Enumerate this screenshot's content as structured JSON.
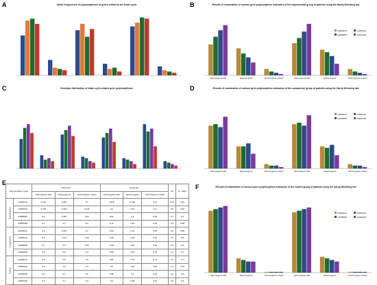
{
  "figure": {
    "labels": [
      "A",
      "B",
      "C",
      "D",
      "E",
      "F"
    ]
  },
  "colors": {
    "gold": "#b58a3e",
    "green": "#1e6b2e",
    "navy": "#2c4a8c",
    "purple": "#7a3b9c",
    "orange": "#e07b39",
    "red": "#c0392b",
    "blue": "#3a5fa8",
    "teal": "#2a9d8f"
  },
  "chart_data": [
    {
      "id": "A",
      "type": "bar",
      "title": "Allelic frequencies of polymorphisms of genes related to the folate cycle",
      "series_colors": [
        "#2c4a8c",
        "#e07b39",
        "#1e6b2e",
        "#c0392b"
      ],
      "groups": [
        {
          "name": "",
          "values": [
            62,
            85,
            88,
            80
          ]
        },
        {
          "name": "",
          "values": [
            24,
            12,
            10,
            8
          ]
        },
        {
          "name": "",
          "values": [
            70,
            80,
            60,
            72
          ]
        },
        {
          "name": "",
          "values": [
            18,
            10,
            12,
            6
          ]
        },
        {
          "name": "",
          "values": [
            76,
            82,
            90,
            88
          ]
        },
        {
          "name": "",
          "values": [
            14,
            8,
            6,
            4
          ]
        }
      ],
      "legend": [
        "",
        "",
        ""
      ]
    },
    {
      "id": "B",
      "type": "bar",
      "title": "Results of examination of various gene polymorphism indicators of the experimental group of patients using the Hardy-Weinberg law",
      "series_colors": [
        "#b58a3e",
        "#1e6b2e",
        "#2c4a8c",
        "#7a3b9c"
      ],
      "groups": [
        {
          "name": "Homozygous wild",
          "values": [
            48,
            60,
            70,
            78
          ]
        },
        {
          "name": "Heterozygous",
          "values": [
            42,
            34,
            28,
            20
          ]
        },
        {
          "name": "Homozygous mutant",
          "values": [
            10,
            6,
            4,
            2
          ]
        },
        {
          "name": "Homozygous wild",
          "values": [
            50,
            58,
            68,
            80
          ]
        },
        {
          "name": "Heterozygous",
          "values": [
            40,
            36,
            30,
            18
          ]
        },
        {
          "name": "Homozygous mutant",
          "values": [
            10,
            6,
            4,
            2
          ]
        }
      ],
      "legend": [
        "rs1801131",
        "rs1801133",
        "rs1805087",
        "rs1801394"
      ]
    },
    {
      "id": "C",
      "type": "bar",
      "title": "Genotype distribution of folate cycle-related gene polymorphisms",
      "series_colors": [
        "#2c4a8c",
        "#1e6b2e",
        "#7a3b9c",
        "#c0392b"
      ],
      "groups": [
        {
          "name": "",
          "values": [
            40,
            55,
            60,
            48
          ]
        },
        {
          "name": "",
          "values": [
            18,
            12,
            14,
            10
          ]
        },
        {
          "name": "",
          "values": [
            46,
            52,
            58,
            44
          ]
        },
        {
          "name": "",
          "values": [
            16,
            14,
            10,
            8
          ]
        },
        {
          "name": "",
          "values": [
            42,
            48,
            54,
            36
          ]
        },
        {
          "name": "",
          "values": [
            14,
            12,
            10,
            6
          ]
        },
        {
          "name": "",
          "values": [
            60,
            50,
            54,
            30
          ]
        },
        {
          "name": "",
          "values": [
            10,
            8,
            6,
            4
          ]
        }
      ],
      "legend": [
        "",
        "",
        ""
      ]
    },
    {
      "id": "D",
      "type": "bar",
      "title": "Results of examination of various gene polymorphism indicators of the comparison group of patients using the Hardy-Weinberg law",
      "series_colors": [
        "#b58a3e",
        "#1e6b2e",
        "#2c4a8c",
        "#7a3b9c"
      ],
      "groups": [
        {
          "name": "Homozygous wild",
          "values": [
            58,
            60,
            56,
            70
          ]
        },
        {
          "name": "Heterozygous",
          "values": [
            30,
            30,
            34,
            20
          ]
        },
        {
          "name": "Homozygous mutant",
          "values": [
            6,
            4,
            4,
            2
          ]
        },
        {
          "name": "Homozygous wild",
          "values": [
            60,
            62,
            58,
            72
          ]
        },
        {
          "name": "Heterozygous",
          "values": [
            30,
            28,
            32,
            18
          ]
        },
        {
          "name": "Homozygous mutant",
          "values": [
            6,
            4,
            4,
            2
          ]
        }
      ],
      "legend": [
        "rs1801131",
        "rs1801133",
        "rs1805087",
        "rs1801394"
      ]
    },
    {
      "id": "F",
      "type": "bar",
      "title": "Results of examination of various gene polymorphism indicators of the control group of patients using the Hardy-Weinberg law",
      "series_colors": [
        "#b58a3e",
        "#1e6b2e",
        "#2c4a8c",
        "#7a3b9c"
      ],
      "groups": [
        {
          "name": "Homozygous wild",
          "values": [
            78,
            80,
            82,
            84
          ]
        },
        {
          "name": "Heterozygous",
          "values": [
            18,
            16,
            14,
            14
          ]
        },
        {
          "name": "Homozygous mutant",
          "values": [
            1,
            1,
            1,
            1
          ]
        },
        {
          "name": "Homozygous wild",
          "values": [
            76,
            78,
            80,
            82
          ]
        },
        {
          "name": "Heterozygous",
          "values": [
            20,
            18,
            16,
            14
          ]
        },
        {
          "name": "Homozygous mutant",
          "values": [
            1,
            1,
            1,
            1
          ]
        }
      ],
      "legend": [
        "rs1801131",
        "rs1801133",
        "rs1805087",
        "rs1801394"
      ]
    }
  ],
  "table_e": {
    "header_group": "Polymorphism types",
    "col_observed": "Observed",
    "col_expected": "Expected",
    "subcols": [
      "Homozygous wild",
      "Heterozygous",
      "Homozygous mutant",
      "Homozygous wild",
      "Heterozygous",
      "Homozygous mutant",
      "X2",
      "P - value"
    ],
    "rows": [
      [
        "rs1801131",
        "0.433",
        "0.467",
        "0.1",
        "0.445",
        "0.449",
        "0.11",
        "0.41",
        "0.52"
      ],
      [
        "rs1801133",
        "0.433",
        "0.433",
        "0.133",
        "0.4",
        "0.44",
        "0.1",
        "0.5",
        "0.48"
      ],
      [
        "rs1805087",
        "0.6",
        "0.367",
        "0.03",
        "0.63",
        "0.3",
        "0.05",
        "0.7",
        "0.4"
      ],
      [
        "rs1801394",
        "0.7",
        "0.3",
        "0.0",
        "0.72",
        "0.26",
        "0.02",
        "0.3",
        "0.58"
      ],
      [
        "rs1801131",
        "0.6",
        "0.267",
        "0.1",
        "0.62",
        "0.32",
        "0.06",
        "0.3",
        "0.58"
      ],
      [
        "rs1801133",
        "0.6",
        "0.33",
        "0.03",
        "0.66",
        "0.28",
        "0.04",
        "0.4",
        "0.5"
      ],
      [
        "rs1805087",
        "0.7",
        "0.3",
        "0.03",
        "0.68",
        "0.28",
        "0.04",
        "0.2",
        "0.6"
      ],
      [
        "rs1801394",
        "0.8",
        "0.2",
        "0.0",
        "0.82",
        "0.16",
        "0.02",
        "0.1",
        "0.7"
      ],
      [
        "rs1801131",
        "0.8",
        "0.2",
        "0.0",
        "0.81",
        "0.18",
        "0.01",
        "0.1",
        "0.7"
      ],
      [
        "rs1801133",
        "0.8",
        "0.2",
        "0.0",
        "0.8",
        "0.18",
        "0.02",
        "0.1",
        "0.75"
      ],
      [
        "rs1805087",
        "0.9",
        "0.1",
        "0.0",
        "0.88",
        "0.1",
        "0.02",
        "0.0",
        "0.8"
      ],
      [
        "rs1801394",
        "0.9",
        "0.1",
        "0.0",
        "0.9",
        "0.09",
        "0.01",
        "0.0",
        "0.9"
      ]
    ],
    "group_labels": [
      "Experimental",
      "Comparison",
      "Control"
    ]
  }
}
